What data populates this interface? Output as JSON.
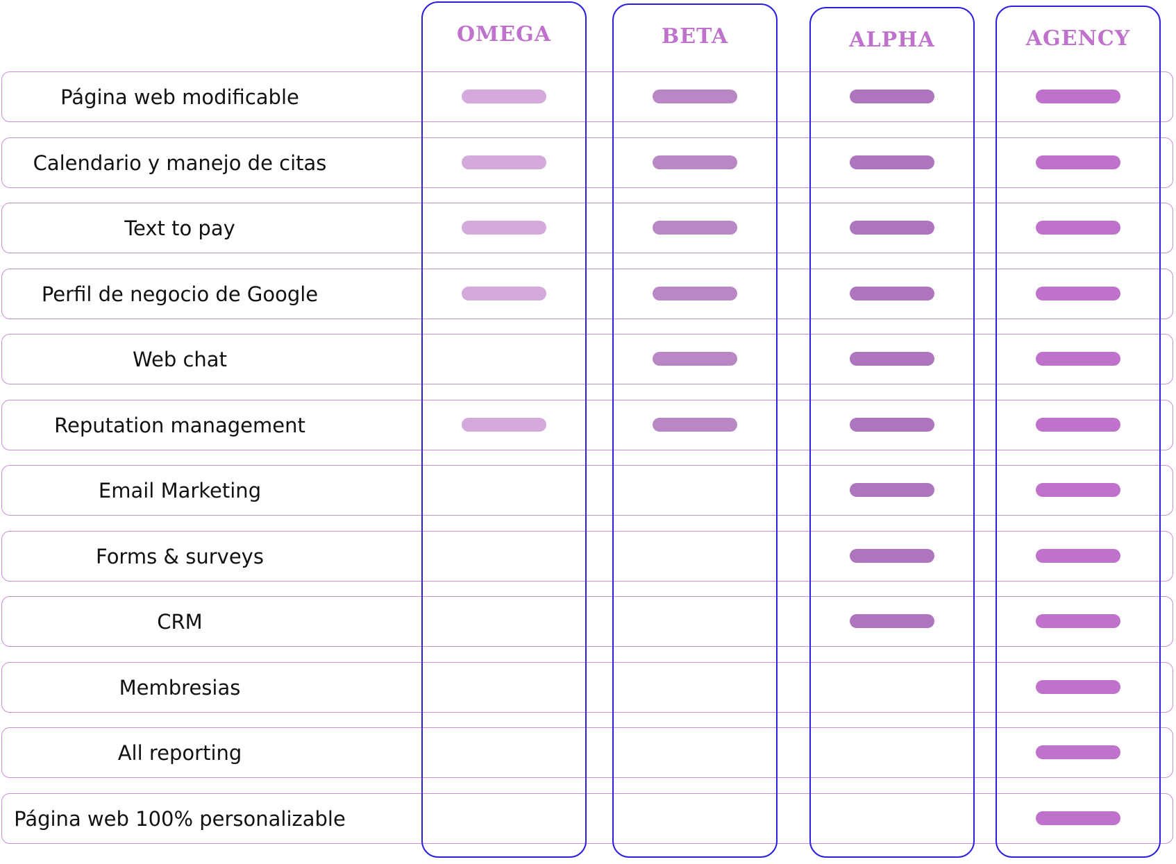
{
  "plans": [
    {
      "name": "OMEGA",
      "color": "#d4a9dc"
    },
    {
      "name": "BETA",
      "color": "#b987c4"
    },
    {
      "name": "ALPHA",
      "color": "#ac75bd"
    },
    {
      "name": "AGENCY",
      "color": "#bf72cc"
    }
  ],
  "header_color": "#bf72cc",
  "column_border_color": "#2b1fe0",
  "row_border_color": "#c98ed6",
  "features": [
    {
      "label": "Página web modificable",
      "included": [
        true,
        true,
        true,
        true
      ]
    },
    {
      "label": "Calendario y manejo de citas",
      "included": [
        true,
        true,
        true,
        true
      ]
    },
    {
      "label": "Text to pay",
      "included": [
        true,
        true,
        true,
        true
      ]
    },
    {
      "label": "Perfil de negocio de Google",
      "included": [
        true,
        true,
        true,
        true
      ]
    },
    {
      "label": "Web chat",
      "included": [
        false,
        true,
        true,
        true
      ]
    },
    {
      "label": "Reputation management",
      "included": [
        true,
        true,
        true,
        true
      ]
    },
    {
      "label": "Email Marketing",
      "included": [
        false,
        false,
        true,
        true
      ]
    },
    {
      "label": "Forms & surveys",
      "included": [
        false,
        false,
        true,
        true
      ]
    },
    {
      "label": "CRM",
      "included": [
        false,
        false,
        true,
        true
      ]
    },
    {
      "label": "Membresias",
      "included": [
        false,
        false,
        false,
        true
      ]
    },
    {
      "label": "All reporting",
      "included": [
        false,
        false,
        false,
        true
      ]
    },
    {
      "label": "Página web 100% personalizable",
      "included": [
        false,
        false,
        false,
        true
      ]
    }
  ]
}
